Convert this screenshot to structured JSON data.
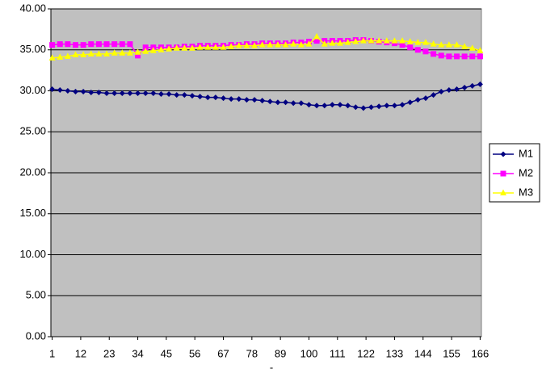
{
  "chart_data": {
    "type": "line",
    "x_label": "-",
    "x": [
      1,
      4,
      7,
      10,
      13,
      16,
      19,
      22,
      25,
      28,
      31,
      34,
      37,
      40,
      43,
      46,
      49,
      52,
      55,
      58,
      61,
      64,
      67,
      70,
      73,
      76,
      79,
      82,
      85,
      88,
      91,
      94,
      97,
      100,
      103,
      106,
      109,
      112,
      115,
      118,
      121,
      124,
      127,
      130,
      133,
      136,
      139,
      142,
      145,
      148,
      151,
      154,
      157,
      160,
      163,
      166
    ],
    "xlim": [
      0.5,
      166.5
    ],
    "xticks": [
      1,
      12,
      23,
      34,
      45,
      56,
      67,
      78,
      89,
      100,
      111,
      122,
      133,
      144,
      155,
      166
    ],
    "ylim": [
      0,
      40
    ],
    "yticks": [
      {
        "value": 0,
        "label": "0.00"
      },
      {
        "value": 5,
        "label": "5.00"
      },
      {
        "value": 10,
        "label": "10.00"
      },
      {
        "value": 15,
        "label": "15.00"
      },
      {
        "value": 20,
        "label": "20.00"
      },
      {
        "value": 25,
        "label": "25.00"
      },
      {
        "value": 30,
        "label": "30.00"
      },
      {
        "value": 35,
        "label": "35.00"
      },
      {
        "value": 40,
        "label": "40.00"
      }
    ],
    "grid": true,
    "legend": "right",
    "series": [
      {
        "name": "M1",
        "color": "#000080",
        "marker": "diamond",
        "values": [
          30.2,
          30.1,
          30.0,
          29.9,
          29.9,
          29.8,
          29.8,
          29.7,
          29.7,
          29.7,
          29.7,
          29.7,
          29.7,
          29.7,
          29.6,
          29.6,
          29.5,
          29.5,
          29.4,
          29.3,
          29.2,
          29.2,
          29.1,
          29.0,
          29.0,
          28.9,
          28.9,
          28.8,
          28.7,
          28.6,
          28.6,
          28.5,
          28.5,
          28.3,
          28.2,
          28.2,
          28.3,
          28.3,
          28.2,
          28.0,
          27.9,
          28.0,
          28.1,
          28.2,
          28.2,
          28.3,
          28.6,
          28.9,
          29.1,
          29.5,
          29.9,
          30.1,
          30.2,
          30.4,
          30.6,
          30.8
        ]
      },
      {
        "name": "M2",
        "color": "#ff00ff",
        "marker": "square",
        "values": [
          35.6,
          35.7,
          35.7,
          35.6,
          35.6,
          35.7,
          35.7,
          35.7,
          35.7,
          35.7,
          35.7,
          34.3,
          35.3,
          35.3,
          35.3,
          35.3,
          35.3,
          35.4,
          35.4,
          35.5,
          35.5,
          35.5,
          35.5,
          35.6,
          35.6,
          35.7,
          35.7,
          35.8,
          35.8,
          35.8,
          35.8,
          35.9,
          35.9,
          36.0,
          36.1,
          36.1,
          36.1,
          36.1,
          36.1,
          36.2,
          36.2,
          36.1,
          36.0,
          35.9,
          35.8,
          35.6,
          35.3,
          35.0,
          34.8,
          34.5,
          34.3,
          34.2,
          34.2,
          34.2,
          34.2,
          34.2
        ]
      },
      {
        "name": "M3",
        "color": "#ffff00",
        "marker": "triangle",
        "values": [
          34.0,
          34.1,
          34.2,
          34.4,
          34.4,
          34.5,
          34.5,
          34.5,
          34.6,
          34.6,
          34.6,
          34.7,
          34.8,
          34.9,
          35.0,
          35.1,
          35.2,
          35.2,
          35.2,
          35.3,
          35.3,
          35.3,
          35.3,
          35.4,
          35.5,
          35.5,
          35.5,
          35.6,
          35.6,
          35.6,
          35.6,
          35.7,
          35.6,
          35.7,
          36.6,
          35.7,
          35.8,
          35.8,
          35.9,
          36.0,
          36.1,
          36.1,
          36.1,
          36.1,
          36.1,
          36.1,
          36.0,
          35.9,
          35.9,
          35.7,
          35.6,
          35.6,
          35.6,
          35.4,
          35.2,
          34.9
        ]
      }
    ]
  }
}
